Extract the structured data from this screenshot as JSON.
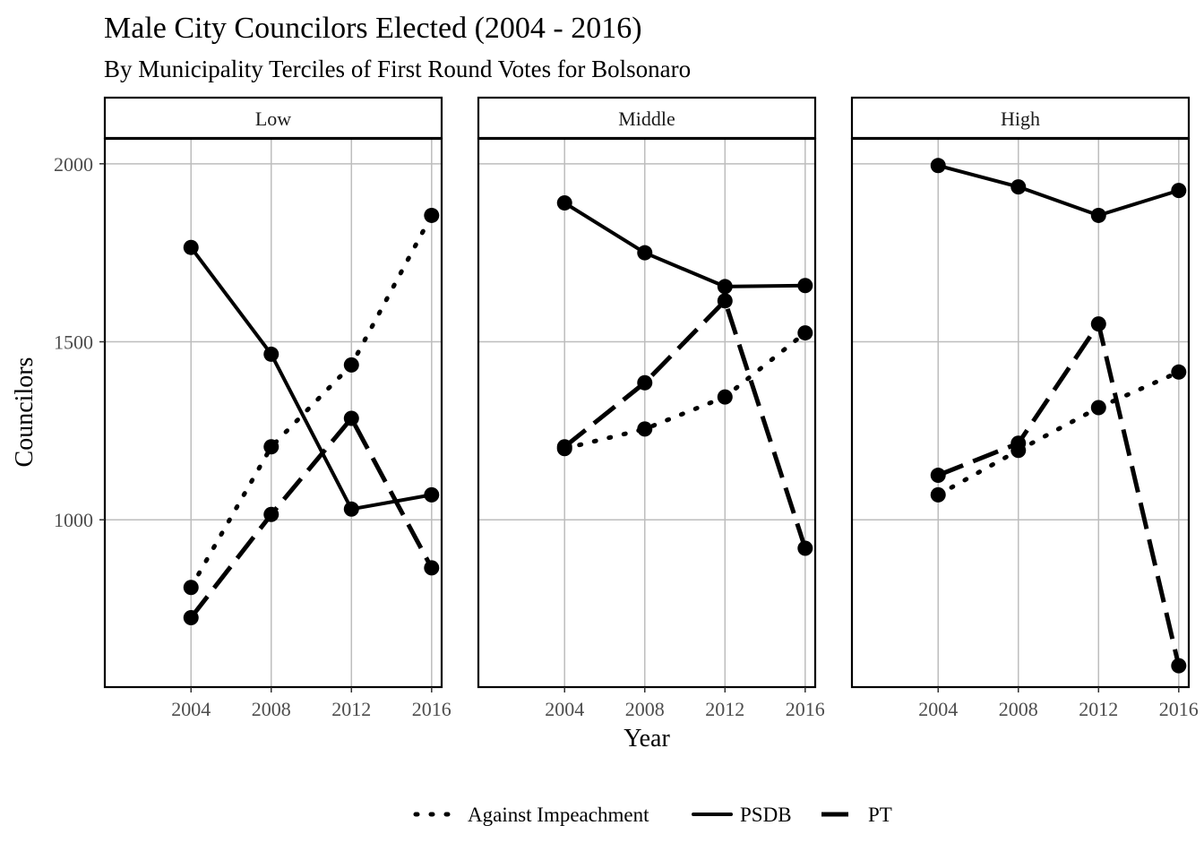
{
  "chart_data": {
    "type": "line",
    "title": "Male City Councilors Elected (2004 - 2016)",
    "subtitle": "By Municipality Terciles of First Round Votes for Bolsonaro",
    "xlabel": "Year",
    "ylabel": "Councilors",
    "x": [
      2004,
      2008,
      2012,
      2016
    ],
    "x_ticks": [
      "2004",
      "2008",
      "2012",
      "2016"
    ],
    "y_ticks": [
      1000,
      1500,
      2000
    ],
    "ylim": [
      530,
      2070
    ],
    "xlim": [
      1999.7,
      2016.5
    ],
    "grid": true,
    "legend_position": "bottom",
    "legend": [
      "Against Impeachment",
      "PSDB",
      "PT"
    ],
    "panels": [
      {
        "label": "Low",
        "series": [
          {
            "name": "Against Impeachment",
            "values": [
              810,
              1205,
              1435,
              1855
            ]
          },
          {
            "name": "PSDB",
            "values": [
              1765,
              1465,
              1030,
              1070
            ]
          },
          {
            "name": "PT",
            "values": [
              725,
              1015,
              1285,
              865
            ]
          }
        ]
      },
      {
        "label": "Middle",
        "series": [
          {
            "name": "Against Impeachment",
            "values": [
              1200,
              1255,
              1345,
              1525
            ]
          },
          {
            "name": "PSDB",
            "values": [
              1890,
              1750,
              1655,
              1658
            ]
          },
          {
            "name": "PT",
            "values": [
              1205,
              1385,
              1615,
              920
            ]
          }
        ]
      },
      {
        "label": "High",
        "series": [
          {
            "name": "Against Impeachment",
            "values": [
              1070,
              1195,
              1315,
              1415
            ]
          },
          {
            "name": "PSDB",
            "values": [
              1995,
              1935,
              1855,
              1925
            ]
          },
          {
            "name": "PT",
            "values": [
              1125,
              1215,
              1550,
              590
            ]
          }
        ]
      }
    ]
  }
}
